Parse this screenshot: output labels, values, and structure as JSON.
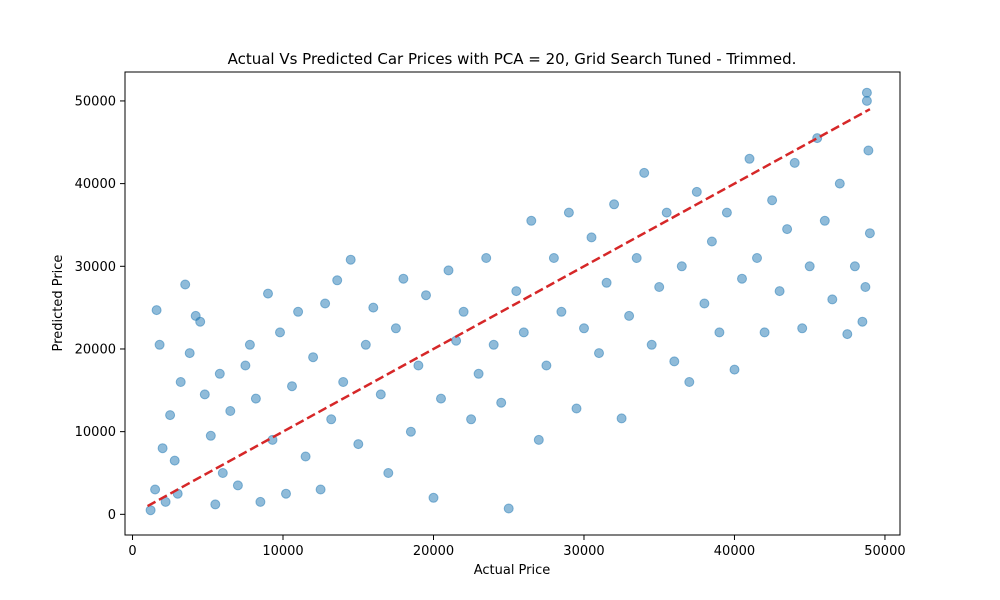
{
  "chart_data": {
    "type": "scatter",
    "title": "Actual Vs Predicted Car Prices with PCA = 20, Grid Search Tuned - Trimmed.",
    "xlabel": "Actual Price",
    "ylabel": "Predicted Price",
    "xlim": [
      -500,
      51000
    ],
    "ylim": [
      -2500,
      53500
    ],
    "x_ticks": [
      0,
      10000,
      20000,
      30000,
      40000,
      50000
    ],
    "y_ticks": [
      0,
      10000,
      20000,
      30000,
      40000,
      50000
    ],
    "x_tick_labels": [
      "0",
      "10000",
      "20000",
      "30000",
      "40000",
      "50000"
    ],
    "y_tick_labels": [
      "0",
      "10000",
      "20000",
      "30000",
      "40000",
      "50000"
    ],
    "grid": false,
    "point_color": "#1f77b4",
    "point_alpha": 0.5,
    "reference_line": {
      "style": "dashed",
      "color": "#d62728",
      "x": [
        1000,
        49000
      ],
      "y": [
        1000,
        49000
      ]
    },
    "series": [
      {
        "points": [
          [
            1200,
            500
          ],
          [
            1500,
            3000
          ],
          [
            1600,
            24700
          ],
          [
            1800,
            20500
          ],
          [
            2000,
            8000
          ],
          [
            2200,
            1500
          ],
          [
            2500,
            12000
          ],
          [
            2800,
            6500
          ],
          [
            3000,
            2500
          ],
          [
            3200,
            16000
          ],
          [
            3500,
            27800
          ],
          [
            3800,
            19500
          ],
          [
            4200,
            24000
          ],
          [
            4500,
            23300
          ],
          [
            4800,
            14500
          ],
          [
            5200,
            9500
          ],
          [
            5500,
            1200
          ],
          [
            5800,
            17000
          ],
          [
            6000,
            5000
          ],
          [
            6500,
            12500
          ],
          [
            7000,
            3500
          ],
          [
            7500,
            18000
          ],
          [
            7800,
            20500
          ],
          [
            8200,
            14000
          ],
          [
            8500,
            1500
          ],
          [
            9000,
            26700
          ],
          [
            9300,
            9000
          ],
          [
            9800,
            22000
          ],
          [
            10200,
            2500
          ],
          [
            10600,
            15500
          ],
          [
            11000,
            24500
          ],
          [
            11500,
            7000
          ],
          [
            12000,
            19000
          ],
          [
            12500,
            3000
          ],
          [
            12800,
            25500
          ],
          [
            13200,
            11500
          ],
          [
            13600,
            28300
          ],
          [
            14000,
            16000
          ],
          [
            14500,
            30800
          ],
          [
            15000,
            8500
          ],
          [
            15500,
            20500
          ],
          [
            16000,
            25000
          ],
          [
            16500,
            14500
          ],
          [
            17000,
            5000
          ],
          [
            17500,
            22500
          ],
          [
            18000,
            28500
          ],
          [
            18500,
            10000
          ],
          [
            19000,
            18000
          ],
          [
            19500,
            26500
          ],
          [
            20000,
            2000
          ],
          [
            20500,
            14000
          ],
          [
            21000,
            29500
          ],
          [
            21500,
            21000
          ],
          [
            22000,
            24500
          ],
          [
            22500,
            11500
          ],
          [
            23000,
            17000
          ],
          [
            23500,
            31000
          ],
          [
            24000,
            20500
          ],
          [
            24500,
            13500
          ],
          [
            25000,
            700
          ],
          [
            25500,
            27000
          ],
          [
            26000,
            22000
          ],
          [
            26500,
            35500
          ],
          [
            27000,
            9000
          ],
          [
            27500,
            18000
          ],
          [
            28000,
            31000
          ],
          [
            28500,
            24500
          ],
          [
            29000,
            36500
          ],
          [
            29500,
            12800
          ],
          [
            30000,
            22500
          ],
          [
            30500,
            33500
          ],
          [
            31000,
            19500
          ],
          [
            31500,
            28000
          ],
          [
            32000,
            37500
          ],
          [
            32500,
            11600
          ],
          [
            33000,
            24000
          ],
          [
            33500,
            31000
          ],
          [
            34000,
            41300
          ],
          [
            34500,
            20500
          ],
          [
            35000,
            27500
          ],
          [
            35500,
            36500
          ],
          [
            36000,
            18500
          ],
          [
            36500,
            30000
          ],
          [
            37000,
            16000
          ],
          [
            37500,
            39000
          ],
          [
            38000,
            25500
          ],
          [
            38500,
            33000
          ],
          [
            39000,
            22000
          ],
          [
            39500,
            36500
          ],
          [
            40000,
            17500
          ],
          [
            40500,
            28500
          ],
          [
            41000,
            43000
          ],
          [
            41500,
            31000
          ],
          [
            42000,
            22000
          ],
          [
            42500,
            38000
          ],
          [
            43000,
            27000
          ],
          [
            43500,
            34500
          ],
          [
            44000,
            42500
          ],
          [
            44500,
            22500
          ],
          [
            45000,
            30000
          ],
          [
            45500,
            45500
          ],
          [
            46000,
            35500
          ],
          [
            46500,
            26000
          ],
          [
            47000,
            40000
          ],
          [
            47500,
            21800
          ],
          [
            48000,
            30000
          ],
          [
            48500,
            23300
          ],
          [
            48800,
            51000
          ],
          [
            48900,
            44000
          ],
          [
            49000,
            34000
          ],
          [
            48700,
            27500
          ],
          [
            48800,
            50000
          ]
        ]
      }
    ]
  }
}
